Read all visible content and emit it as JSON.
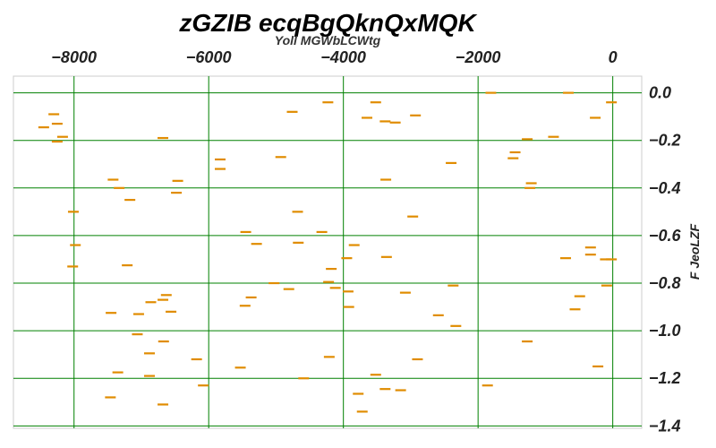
{
  "chart_data": {
    "type": "scatter",
    "title": "zGZIB ecqBgQknQxMQK",
    "xlabel": "Yoll MGWbLCWtg",
    "ylabel": "F JeoLZF",
    "xlim": [
      -8900,
      430
    ],
    "ylim": [
      -1.41,
      0.07
    ],
    "x_ticks": [
      -8000,
      -6000,
      -4000,
      -2000,
      0
    ],
    "x_tick_labels": [
      "−8000",
      "−6000",
      "−4000",
      "−2000",
      "0"
    ],
    "y_ticks": [
      0.0,
      -0.2,
      -0.4,
      -0.6,
      -0.8,
      -1.0,
      -1.2,
      -1.4
    ],
    "y_tick_labels": [
      "0.0",
      "−0.2",
      "−0.4",
      "−0.6",
      "−0.8",
      "−1.0",
      "−1.2",
      "−1.4"
    ],
    "x_axis_position": "top",
    "y_axis_position": "right",
    "grid": true,
    "grid_color": "#008000",
    "marker": "hline",
    "marker_color": "#e08c00",
    "points": [
      [
        -8300,
        -0.09
      ],
      [
        -8250,
        -0.13
      ],
      [
        -8450,
        -0.145
      ],
      [
        -8170,
        -0.185
      ],
      [
        -8250,
        -0.205
      ],
      [
        -6680,
        -0.19
      ],
      [
        -4760,
        -0.08
      ],
      [
        -4230,
        -0.04
      ],
      [
        -3520,
        -0.04
      ],
      [
        -3650,
        -0.105
      ],
      [
        -3380,
        -0.12
      ],
      [
        -3230,
        -0.125
      ],
      [
        -2930,
        -0.095
      ],
      [
        -1810,
        0.0
      ],
      [
        -660,
        0.0
      ],
      [
        -260,
        -0.105
      ],
      [
        -20,
        -0.04
      ],
      [
        -1270,
        -0.195
      ],
      [
        -880,
        -0.185
      ],
      [
        -1450,
        -0.25
      ],
      [
        -1480,
        -0.275
      ],
      [
        -1210,
        -0.38
      ],
      [
        -1230,
        -0.4
      ],
      [
        -2400,
        -0.295
      ],
      [
        -5830,
        -0.28
      ],
      [
        -5830,
        -0.32
      ],
      [
        -4930,
        -0.27
      ],
      [
        -6460,
        -0.37
      ],
      [
        -6480,
        -0.42
      ],
      [
        -7420,
        -0.365
      ],
      [
        -7330,
        -0.4
      ],
      [
        -7170,
        -0.45
      ],
      [
        -3370,
        -0.365
      ],
      [
        -4680,
        -0.5
      ],
      [
        -2970,
        -0.52
      ],
      [
        -8010,
        -0.5
      ],
      [
        -7980,
        -0.64
      ],
      [
        -8020,
        -0.73
      ],
      [
        -7210,
        -0.725
      ],
      [
        -5450,
        -0.585
      ],
      [
        -5290,
        -0.635
      ],
      [
        -4670,
        -0.63
      ],
      [
        -4320,
        -0.585
      ],
      [
        -3840,
        -0.64
      ],
      [
        -3950,
        -0.695
      ],
      [
        -3360,
        -0.69
      ],
      [
        -4180,
        -0.74
      ],
      [
        -4220,
        -0.795
      ],
      [
        -4120,
        -0.82
      ],
      [
        -3930,
        -0.835
      ],
      [
        -5030,
        -0.8
      ],
      [
        -4810,
        -0.825
      ],
      [
        -5370,
        -0.86
      ],
      [
        -5460,
        -0.895
      ],
      [
        -3920,
        -0.9
      ],
      [
        -3080,
        -0.84
      ],
      [
        -2370,
        -0.81
      ],
      [
        -2590,
        -0.935
      ],
      [
        -2330,
        -0.98
      ],
      [
        -6630,
        -0.85
      ],
      [
        -6680,
        -0.87
      ],
      [
        -6860,
        -0.88
      ],
      [
        -6560,
        -0.92
      ],
      [
        -7040,
        -0.93
      ],
      [
        -7450,
        -0.925
      ],
      [
        -1860,
        -1.23
      ],
      [
        -1270,
        -1.045
      ],
      [
        -7060,
        -1.015
      ],
      [
        -6670,
        -1.045
      ],
      [
        -6880,
        -1.095
      ],
      [
        -6180,
        -1.12
      ],
      [
        -5530,
        -1.155
      ],
      [
        -4210,
        -1.11
      ],
      [
        -2900,
        -1.12
      ],
      [
        -7350,
        -1.175
      ],
      [
        -6880,
        -1.19
      ],
      [
        -7460,
        -1.28
      ],
      [
        -6680,
        -1.31
      ],
      [
        -6080,
        -1.23
      ],
      [
        -4590,
        -1.2
      ],
      [
        -3520,
        -1.185
      ],
      [
        -3780,
        -1.265
      ],
      [
        -3380,
        -1.245
      ],
      [
        -3150,
        -1.25
      ],
      [
        -3720,
        -1.34
      ],
      [
        -700,
        -0.695
      ],
      [
        -330,
        -0.65
      ],
      [
        -330,
        -0.68
      ],
      [
        -110,
        -0.7
      ],
      [
        -20,
        -0.7
      ],
      [
        -90,
        -0.81
      ],
      [
        -490,
        -0.855
      ],
      [
        -560,
        -0.91
      ],
      [
        -220,
        -1.15
      ]
    ]
  }
}
